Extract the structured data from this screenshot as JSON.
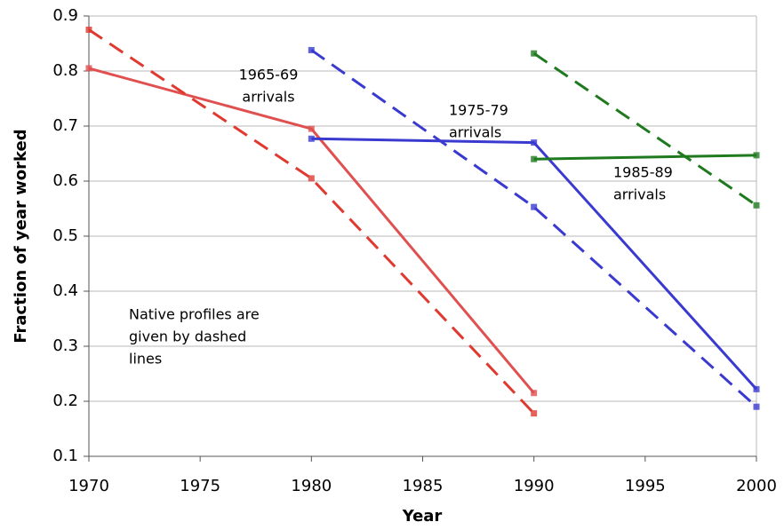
{
  "chart_data": {
    "type": "line",
    "xlabel": "Year",
    "ylabel": "Fraction of year worked",
    "xlim": [
      1970,
      2000
    ],
    "xticks": [
      1970,
      1975,
      1980,
      1985,
      1990,
      1995,
      2000
    ],
    "ylim": [
      0.1,
      0.9
    ],
    "yticks": [
      0.1,
      0.2,
      0.3,
      0.4,
      0.5,
      0.6,
      0.7,
      0.8,
      0.9
    ],
    "grid": true,
    "series": [
      {
        "color": "#e05050",
        "dashed": false,
        "x": [
          1970,
          1980,
          1990
        ],
        "values": [
          0.805,
          0.695,
          0.215
        ]
      },
      {
        "color": "#e03a30",
        "dashed": true,
        "x": [
          1970,
          1980,
          1990
        ],
        "values": [
          0.875,
          0.605,
          0.178
        ]
      },
      {
        "color": "#3a3ad0",
        "dashed": false,
        "x": [
          1980,
          1990,
          2000
        ],
        "values": [
          0.677,
          0.67,
          0.222
        ]
      },
      {
        "color": "#3a3ad0",
        "dashed": true,
        "x": [
          1980,
          1990,
          2000
        ],
        "values": [
          0.838,
          0.553,
          0.19
        ]
      },
      {
        "color": "#1f7a1f",
        "dashed": false,
        "x": [
          1990,
          2000
        ],
        "values": [
          0.64,
          0.647
        ]
      },
      {
        "color": "#1f7a1f",
        "dashed": true,
        "x": [
          1990,
          2000
        ],
        "values": [
          0.832,
          0.556
        ]
      }
    ],
    "annotations": [
      {
        "lines": [
          "1965-69",
          "arrivals"
        ]
      },
      {
        "lines": [
          "1975-79",
          "arrivals"
        ]
      },
      {
        "lines": [
          "1985-89",
          "arrivals"
        ]
      },
      {
        "lines": [
          "Native profiles are",
          "given by dashed",
          "lines"
        ]
      }
    ]
  }
}
